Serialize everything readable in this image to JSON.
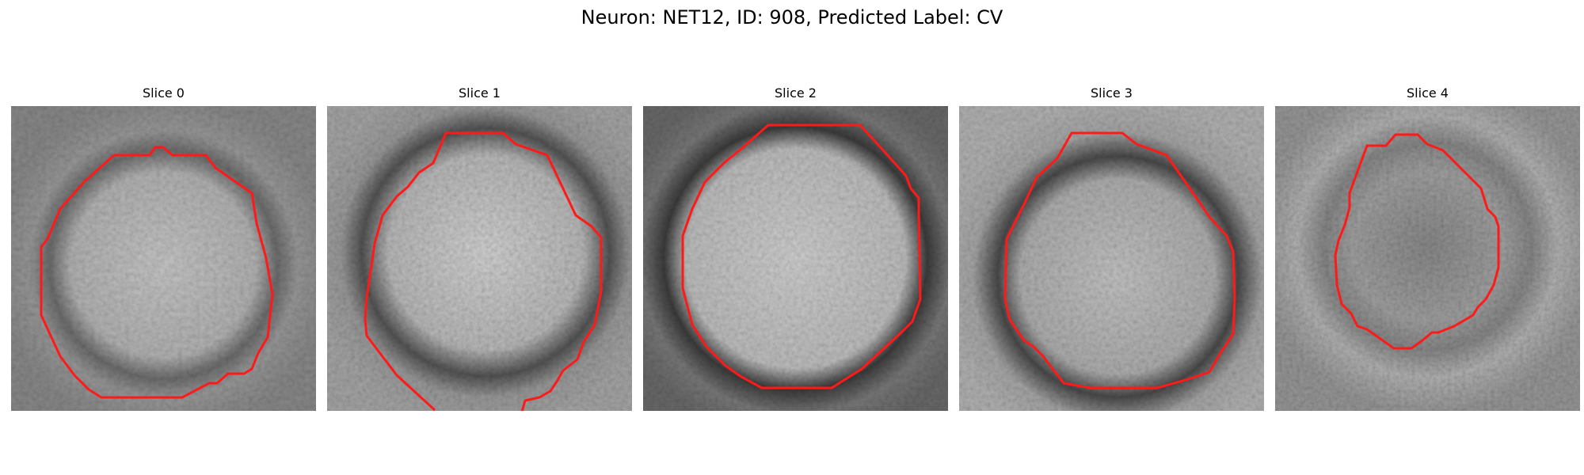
{
  "figure": {
    "title": "Neuron: NET12, ID: 908, Predicted Label: CV"
  },
  "panels": [
    {
      "title": "Slice 0"
    },
    {
      "title": "Slice 1"
    },
    {
      "title": "Slice 2"
    },
    {
      "title": "Slice 3"
    },
    {
      "title": "Slice 4"
    }
  ],
  "colors": {
    "contour": "#ff1a1a",
    "colormap": "grayscale"
  }
}
